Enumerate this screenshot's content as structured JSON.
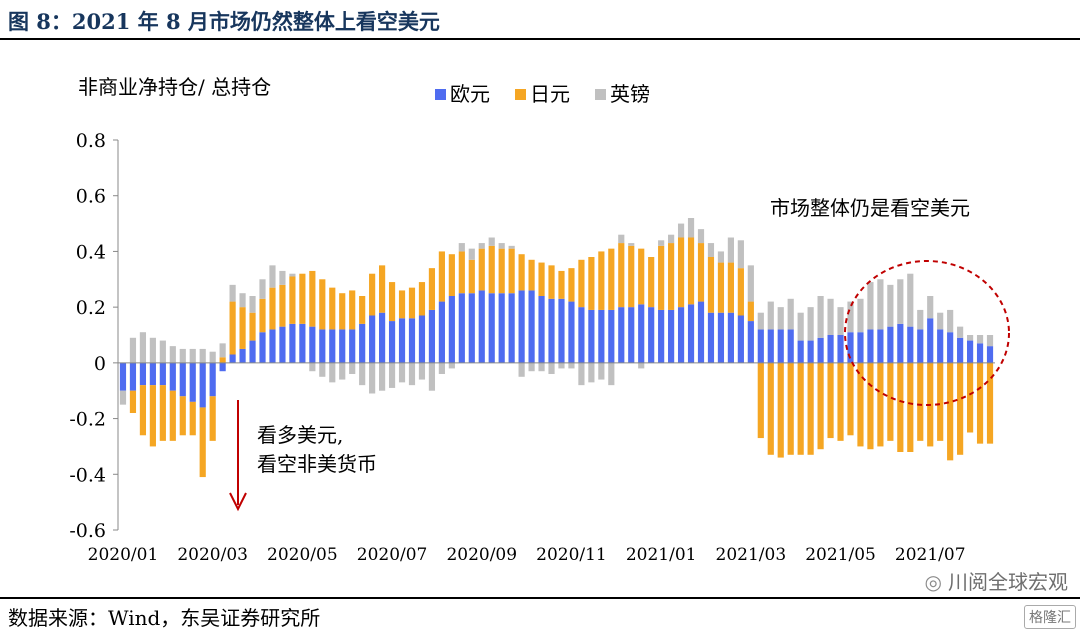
{
  "figure": {
    "title": "图 8：2021 年 8 月市场仍然整体上看空美元",
    "source": "数据来源：Wind，东吴证券研究所",
    "watermark": "川阅全球宏观",
    "logo": "格隆汇"
  },
  "chart_data": {
    "type": "bar",
    "stacked": true,
    "ylabel": "非商业净持仓/ 总持仓",
    "ylim": [
      -0.6,
      0.8
    ],
    "yticks": [
      "0.8",
      "0.6",
      "0.4",
      "0.2",
      "0",
      "-0.2",
      "-0.4",
      "-0.6"
    ],
    "ytick_values": [
      0.8,
      0.6,
      0.4,
      0.2,
      0,
      -0.2,
      -0.4,
      -0.6
    ],
    "xtick_labels": [
      "2020/01",
      "2020/03",
      "2020/05",
      "2020/07",
      "2020/09",
      "2020/11",
      "2021/01",
      "2021/03",
      "2021/05",
      "2021/07"
    ],
    "xtick_index": [
      0,
      9,
      18,
      27,
      36,
      45,
      54,
      63,
      72,
      81
    ],
    "legend": {
      "placement": "top-center",
      "entries": [
        "欧元",
        "日元",
        "英镑"
      ]
    },
    "colors": {
      "欧元": "#4f6cf0",
      "日元": "#f5a623",
      "英镑": "#c0c0c0"
    },
    "annotations": {
      "bullish_note": "市场整体仍是看空美元",
      "bearish_note_line1": "看多美元,",
      "bearish_note_line2": "看空非美货币"
    },
    "categories_count": 88,
    "series": [
      {
        "name": "欧元",
        "values": [
          -0.1,
          -0.1,
          -0.08,
          -0.08,
          -0.08,
          -0.1,
          -0.12,
          -0.14,
          -0.16,
          -0.12,
          -0.03,
          0.03,
          0.05,
          0.08,
          0.11,
          0.12,
          0.13,
          0.14,
          0.14,
          0.13,
          0.12,
          0.12,
          0.12,
          0.12,
          0.14,
          0.17,
          0.18,
          0.15,
          0.16,
          0.16,
          0.17,
          0.19,
          0.22,
          0.24,
          0.25,
          0.25,
          0.26,
          0.25,
          0.25,
          0.25,
          0.26,
          0.26,
          0.24,
          0.23,
          0.23,
          0.22,
          0.2,
          0.19,
          0.19,
          0.19,
          0.2,
          0.2,
          0.21,
          0.2,
          0.19,
          0.19,
          0.2,
          0.21,
          0.22,
          0.18,
          0.18,
          0.18,
          0.17,
          0.15,
          0.12,
          0.12,
          0.12,
          0.12,
          0.08,
          0.08,
          0.09,
          0.1,
          0.1,
          0.11,
          0.11,
          0.12,
          0.12,
          0.13,
          0.14,
          0.13,
          0.12,
          0.16,
          0.12,
          0.11,
          0.09,
          0.08,
          0.07,
          0.06
        ]
      },
      {
        "name": "日元",
        "values": [
          0,
          -0.08,
          -0.18,
          -0.22,
          -0.2,
          -0.18,
          -0.14,
          -0.12,
          -0.25,
          -0.16,
          0.02,
          0.19,
          0.15,
          0.1,
          0.12,
          0.15,
          0.15,
          0.17,
          0.18,
          0.2,
          0.18,
          0.15,
          0.13,
          0.14,
          0.1,
          0.15,
          0.17,
          0.14,
          0.1,
          0.11,
          0.12,
          0.15,
          0.18,
          0.15,
          0.15,
          0.12,
          0.15,
          0.17,
          0.16,
          0.16,
          0.13,
          0.11,
          0.12,
          0.12,
          0.1,
          0.12,
          0.17,
          0.19,
          0.21,
          0.22,
          0.23,
          0.22,
          0.2,
          0.18,
          0.23,
          0.24,
          0.25,
          0.24,
          0.21,
          0.2,
          0.18,
          0.18,
          0.17,
          0.07,
          -0.27,
          -0.33,
          -0.34,
          -0.33,
          -0.33,
          -0.33,
          -0.31,
          -0.27,
          -0.28,
          -0.26,
          -0.3,
          -0.31,
          -0.3,
          -0.28,
          -0.32,
          -0.32,
          -0.28,
          -0.3,
          -0.28,
          -0.35,
          -0.33,
          -0.25,
          -0.29,
          -0.29
        ]
      },
      {
        "name": "英镑",
        "values": [
          -0.05,
          0.09,
          0.11,
          0.09,
          0.08,
          0.06,
          0.05,
          0.05,
          0.05,
          0.04,
          0.05,
          0.06,
          0.05,
          0.06,
          0.07,
          0.08,
          0.05,
          0.01,
          0,
          -0.03,
          -0.05,
          -0.07,
          -0.06,
          -0.04,
          -0.08,
          -0.11,
          -0.1,
          -0.09,
          -0.07,
          -0.08,
          -0.06,
          -0.1,
          -0.04,
          -0.02,
          0.03,
          0.04,
          0.02,
          0.03,
          0.02,
          0.01,
          -0.05,
          -0.03,
          -0.03,
          -0.04,
          -0.02,
          -0.02,
          -0.08,
          -0.07,
          -0.06,
          -0.08,
          0.03,
          0.01,
          -0.02,
          0,
          0.02,
          0.03,
          0.05,
          0.07,
          0.05,
          0.05,
          0.04,
          0.09,
          0.1,
          0.13,
          0.06,
          0.1,
          0.08,
          0.11,
          0.1,
          0.12,
          0.15,
          0.13,
          0.1,
          0.11,
          0.12,
          0.17,
          0.18,
          0.15,
          0.16,
          0.19,
          0.07,
          0.08,
          0.06,
          0.08,
          0.04,
          0.02,
          0.03,
          0.04
        ]
      }
    ]
  }
}
